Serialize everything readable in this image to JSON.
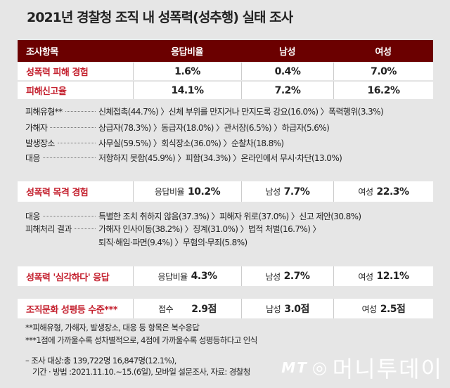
{
  "title": "2021년 경찰청 조직 내 성폭력(성추행) 실태 조사",
  "table_header": [
    "조사항목",
    "응답비율",
    "남성",
    "여성"
  ],
  "rows": [
    {
      "label": "성폭력 피해 경험",
      "total": "1.6%",
      "male": "0.4%",
      "female": "7.0%"
    },
    {
      "label": "피해신고율",
      "total": "14.1%",
      "male": "7.2%",
      "female": "16.2%"
    }
  ],
  "details1": [
    {
      "key": "피해유형**",
      "value": "신체접촉(44.7%) 〉신체 부위를 만지거나 만지도록 강요(16.0%) 〉폭력행위(3.3%)"
    },
    {
      "key": "가해자",
      "value": "상급자(78.3%) 〉동급자(18.0%) 〉관서장(6.5%) 〉하급자(5.6%)"
    },
    {
      "key": "발생장소",
      "value": "사무실(59.5%) 〉회식장소(36.0%) 〉순찰차(18.8%)"
    },
    {
      "key": "대응",
      "value": "저항하지 못함(45.9%) 〉피함(34.3%) 〉온라인에서 무시·차단(13.0%)"
    }
  ],
  "witness": {
    "label": "성폭력 목격 경험",
    "total_label": "응답비율",
    "total": "10.2%",
    "male_label": "남성",
    "male": "7.7%",
    "female_label": "여성",
    "female": "22.3%"
  },
  "details2": [
    {
      "key": "대응",
      "value": "특별한 조치 취하지 않음(37.3%) 〉피해자 위로(37.0%) 〉신고 제안(30.8%)"
    },
    {
      "key": "피해처리 결과",
      "value": "가해자 인사이동(38.2%) 〉징계(31.0%) 〉법적 처벌(16.7%) 〉"
    },
    {
      "key": "",
      "value": "퇴직·해임·파면(9.4%) 〉무혐의·무죄(5.8%)"
    }
  ],
  "serious": {
    "label": "성폭력 '심각하다' 응답",
    "total_label": "응답비율",
    "total": "4.3%",
    "male_label": "남성",
    "male": "2.7%",
    "female_label": "여성",
    "female": "12.1%"
  },
  "equality": {
    "label": "조직문화 성평등 수준***",
    "total_label": "점수",
    "total": "2.9점",
    "male_label": "남성",
    "male": "3.0점",
    "female_label": "여성",
    "female": "2.5점"
  },
  "notes": [
    "**피해유형, 가해자, 발생장소, 대응 등 항목은 복수응답",
    "***1점에 가까울수록 성차별적으로, 4점에 가까울수록 성평등하다고 인식"
  ],
  "source": [
    "– 조사 대상:총 139,722명 16,847명(12.1%),",
    "기간 · 방법 :2021.11.10.~15.(6일), 모바일 설문조사, 자료: 경찰청"
  ],
  "logo": {
    "mt": "MT",
    "name": "머니투데이"
  },
  "colors": {
    "header": "#6b0000",
    "accent": "#c4202e",
    "background": "#e6e6e6"
  }
}
